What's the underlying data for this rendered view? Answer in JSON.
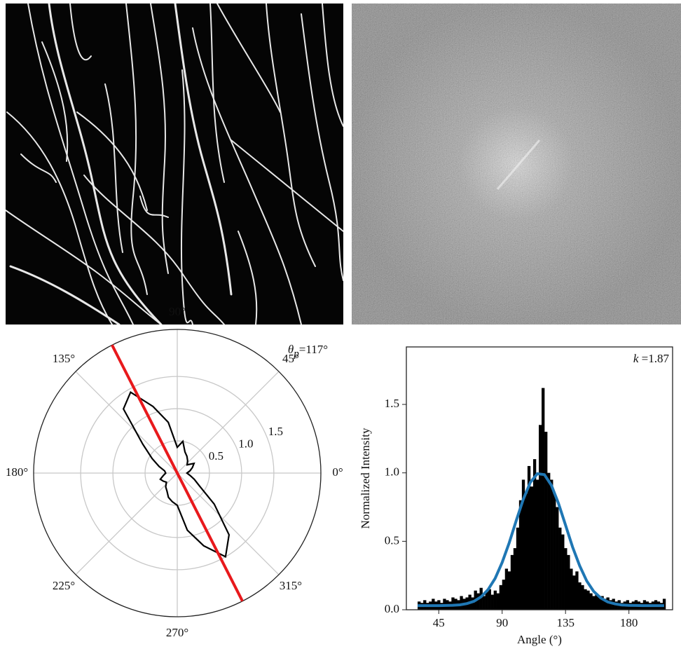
{
  "chart_data": [
    {
      "type": "polar",
      "theta": [
        0,
        10,
        20,
        30,
        40,
        50,
        60,
        70,
        80,
        90,
        100,
        110,
        120,
        130,
        140,
        150,
        160,
        170,
        180,
        190,
        200,
        210,
        220,
        230,
        240,
        250,
        260,
        270,
        280,
        290,
        300,
        310,
        320,
        330,
        340,
        350
      ],
      "values": [
        0.15,
        0.2,
        0.25,
        0.3,
        0.2,
        0.25,
        0.3,
        0.35,
        0.5,
        0.4,
        0.8,
        1.1,
        1.45,
        1.3,
        0.7,
        0.45,
        0.3,
        0.2,
        0.18,
        0.22,
        0.28,
        0.25,
        0.22,
        0.28,
        0.32,
        0.4,
        0.45,
        0.5,
        0.9,
        1.2,
        1.5,
        1.25,
        0.75,
        0.4,
        0.28,
        0.2
      ],
      "color": "#000000",
      "rlim": [
        0,
        2.23
      ],
      "rticks": [
        0.5,
        {
          "value": 1,
          "label": "1.0"
        },
        1.5
      ],
      "thetaticks": [
        {
          "value": 0,
          "label": "0°"
        },
        {
          "value": 45,
          "label": "45°"
        },
        {
          "value": 90,
          "label": "90°"
        },
        {
          "value": 135,
          "label": "135°"
        },
        {
          "value": 180,
          "label": "180°"
        },
        {
          "value": 225,
          "label": "225°"
        },
        {
          "value": 270,
          "label": "270°"
        },
        {
          "value": 315,
          "label": "315°"
        }
      ],
      "peak_angle": 117,
      "peak_color": "#e8191c",
      "annotation": "θp=117°"
    },
    {
      "type": "histogram",
      "bins": [
        30,
        32,
        34,
        36,
        38,
        40,
        42,
        44,
        46,
        48,
        50,
        52,
        54,
        56,
        58,
        60,
        62,
        64,
        66,
        68,
        70,
        72,
        74,
        76,
        78,
        80,
        82,
        84,
        86,
        88,
        90,
        92,
        94,
        96,
        98,
        100,
        102,
        104,
        106,
        108,
        110,
        112,
        114,
        116,
        118,
        120,
        122,
        124,
        126,
        128,
        130,
        132,
        134,
        136,
        138,
        140,
        142,
        144,
        146,
        148,
        150,
        152,
        154,
        156,
        158,
        160,
        162,
        164,
        166,
        168,
        170,
        172,
        174,
        176,
        178,
        180,
        182,
        184,
        186,
        188,
        190,
        192,
        194,
        196,
        198,
        200,
        202,
        204,
        206
      ],
      "values": [
        0.06,
        0.05,
        0.07,
        0.05,
        0.06,
        0.08,
        0.06,
        0.07,
        0.05,
        0.08,
        0.07,
        0.06,
        0.09,
        0.08,
        0.07,
        0.1,
        0.08,
        0.09,
        0.11,
        0.09,
        0.14,
        0.12,
        0.16,
        0.1,
        0.13,
        0.15,
        0.11,
        0.14,
        0.12,
        0.18,
        0.22,
        0.3,
        0.28,
        0.4,
        0.45,
        0.6,
        0.8,
        0.95,
        0.85,
        1.05,
        0.9,
        1.1,
        0.95,
        1.35,
        1.62,
        1.3,
        1.0,
        0.95,
        0.85,
        0.75,
        0.6,
        0.55,
        0.45,
        0.4,
        0.3,
        0.25,
        0.28,
        0.2,
        0.18,
        0.15,
        0.14,
        0.12,
        0.1,
        0.11,
        0.09,
        0.1,
        0.08,
        0.09,
        0.07,
        0.08,
        0.06,
        0.07,
        0.05,
        0.06,
        0.07,
        0.05,
        0.06,
        0.07,
        0.06,
        0.05,
        0.07,
        0.06,
        0.05,
        0.06,
        0.07,
        0.06,
        0.05,
        0.08
      ],
      "color": "#000000",
      "fit": {
        "color": "#1f77b4",
        "x": [
          30,
          35,
          40,
          45,
          50,
          55,
          60,
          65,
          70,
          75,
          80,
          85,
          90,
          95,
          100,
          105,
          110,
          115,
          120,
          125,
          130,
          135,
          140,
          145,
          150,
          155,
          160,
          165,
          170,
          175,
          180,
          185,
          190,
          195,
          200,
          205
        ],
        "y": [
          0.03,
          0.03,
          0.03,
          0.03,
          0.031,
          0.033,
          0.036,
          0.045,
          0.062,
          0.094,
          0.147,
          0.229,
          0.345,
          0.489,
          0.651,
          0.807,
          0.93,
          0.994,
          0.987,
          0.909,
          0.777,
          0.618,
          0.459,
          0.322,
          0.211,
          0.134,
          0.086,
          0.057,
          0.043,
          0.035,
          0.032,
          0.031,
          0.03,
          0.03,
          0.03,
          0.03
        ]
      },
      "xlim": [
        22,
        211
      ],
      "ylim": [
        0,
        1.92
      ],
      "xticks": [
        45,
        90,
        135,
        180
      ],
      "yticks": [
        {
          "value": 0,
          "label": "0.0"
        },
        0.5,
        {
          "value": 1,
          "label": "1.0"
        },
        1.5
      ],
      "xlabel": "Angle (°)",
      "ylabel": "Normalized Intensity",
      "annotation": "k =1.87"
    }
  ]
}
